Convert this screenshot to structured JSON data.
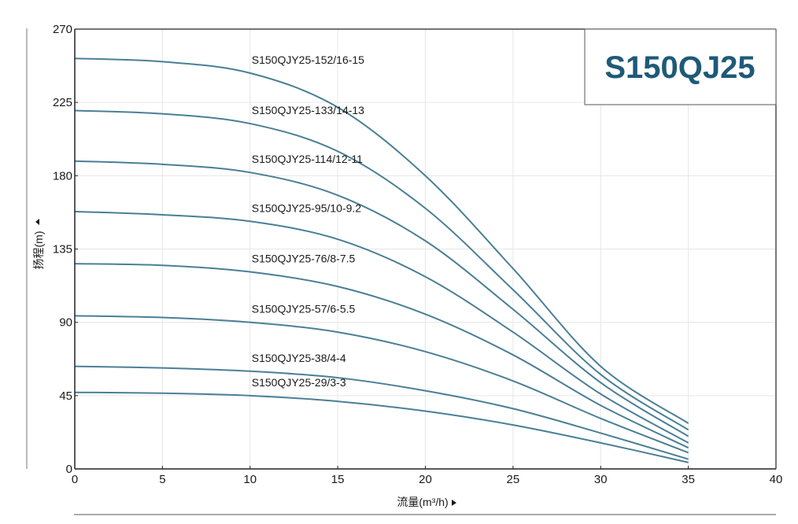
{
  "chart_data": {
    "type": "line",
    "title": "S150QJ25",
    "xlabel": "流量(m³/h)",
    "ylabel": "扬程(m)",
    "xlim": [
      0,
      40
    ],
    "ylim": [
      0,
      270
    ],
    "x_ticks": [
      0,
      5,
      10,
      15,
      20,
      25,
      30,
      35,
      40
    ],
    "y_ticks": [
      0,
      45,
      90,
      135,
      180,
      225,
      270
    ],
    "grid": true,
    "series": [
      {
        "name": "S150QJY25-152/16-15",
        "x": [
          0,
          5,
          10,
          15,
          20,
          25,
          30,
          35
        ],
        "y": [
          252,
          250,
          243,
          222,
          180,
          123,
          63,
          28
        ]
      },
      {
        "name": "S150QJY25-133/14-13",
        "x": [
          0,
          5,
          10,
          15,
          20,
          25,
          30,
          35
        ],
        "y": [
          220,
          218,
          212,
          195,
          160,
          110,
          58,
          24
        ]
      },
      {
        "name": "S150QJY25-114/12-11",
        "x": [
          0,
          5,
          10,
          15,
          20,
          25,
          30,
          35
        ],
        "y": [
          189,
          187,
          182,
          168,
          140,
          98,
          53,
          20
        ]
      },
      {
        "name": "S150QJY25-95/10-9.2",
        "x": [
          0,
          5,
          10,
          15,
          20,
          25,
          30,
          35
        ],
        "y": [
          158,
          156,
          152,
          141,
          118,
          84,
          46,
          16
        ]
      },
      {
        "name": "S150QJY25-76/8-7.5",
        "x": [
          0,
          5,
          10,
          15,
          20,
          25,
          30,
          35
        ],
        "y": [
          126,
          125,
          121,
          112,
          95,
          70,
          39,
          13
        ]
      },
      {
        "name": "S150QJY25-57/6-5.5",
        "x": [
          0,
          5,
          10,
          15,
          20,
          25,
          30,
          35
        ],
        "y": [
          94,
          93,
          90,
          84,
          72,
          54,
          31,
          10
        ]
      },
      {
        "name": "S150QJY25-38/4-4",
        "x": [
          0,
          5,
          10,
          15,
          20,
          25,
          30,
          35
        ],
        "y": [
          63,
          62,
          60,
          56,
          48,
          37,
          22,
          6
        ]
      },
      {
        "name": "S150QJY25-29/3-3",
        "x": [
          0,
          5,
          10,
          15,
          20,
          25,
          30,
          35
        ],
        "y": [
          47,
          46.5,
          45,
          41.5,
          35.5,
          27,
          16,
          4
        ]
      }
    ],
    "colors": {
      "curve": "#4a7f96",
      "badge_text": "#1e5a78",
      "grid": "#e6e6e6",
      "axis": "#222222"
    }
  }
}
